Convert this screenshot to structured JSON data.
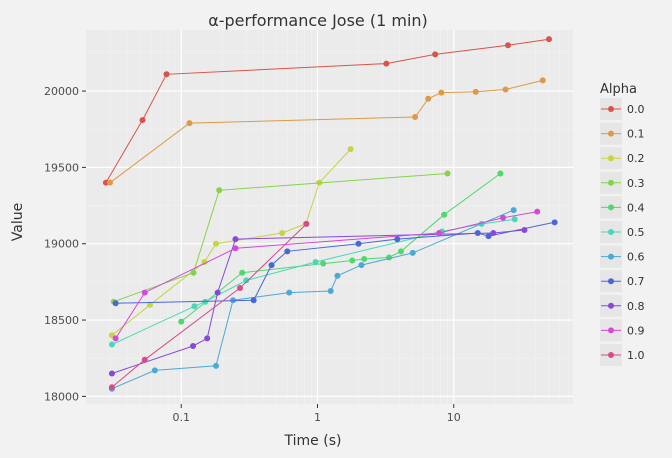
{
  "chart_data": {
    "type": "line",
    "title": "α-performance Jose (1 min)",
    "xlabel": "Time (s)",
    "ylabel": "Value",
    "x_scale": "log",
    "xlim": [
      0.02,
      75
    ],
    "ylim": [
      17950,
      20400
    ],
    "x_ticks": [
      0.1,
      1,
      10
    ],
    "x_tick_labels": [
      "0.1",
      "1",
      "10"
    ],
    "y_ticks": [
      18000,
      18500,
      19000,
      19500,
      20000
    ],
    "y_tick_labels": [
      "18000",
      "18500",
      "19000",
      "19500",
      "20000"
    ],
    "grid": true,
    "legend": {
      "title": "Alpha",
      "position": "right"
    },
    "series": [
      {
        "name": "0.0",
        "color": "#d9534a",
        "x": [
          0.028,
          0.052,
          0.078,
          3.2,
          7.3,
          25,
          50
        ],
        "y": [
          19400,
          19810,
          20110,
          20180,
          20240,
          20300,
          20340
        ]
      },
      {
        "name": "0.1",
        "color": "#dd9945",
        "x": [
          0.03,
          0.115,
          5.2,
          6.5,
          8.1,
          14.5,
          24,
          45
        ],
        "y": [
          19400,
          19790,
          19830,
          19950,
          19990,
          19995,
          20010,
          20070
        ]
      },
      {
        "name": "0.2",
        "color": "#c7d33f",
        "x": [
          0.031,
          0.059,
          0.148,
          0.18,
          0.55,
          0.82,
          1.03,
          1.75
        ],
        "y": [
          18400,
          18600,
          18880,
          19000,
          19070,
          19130,
          19400,
          19620
        ]
      },
      {
        "name": "0.3",
        "color": "#86d34a",
        "x": [
          0.032,
          0.123,
          0.19,
          9
        ],
        "y": [
          18620,
          18810,
          19350,
          19460
        ]
      },
      {
        "name": "0.4",
        "color": "#4fd86c",
        "x": [
          0.1,
          0.28,
          1.1,
          1.8,
          2.2,
          3.35,
          4.1,
          8.5,
          22
        ],
        "y": [
          18490,
          18810,
          18870,
          18890,
          18900,
          18910,
          18950,
          19190,
          19460
        ]
      },
      {
        "name": "0.5",
        "color": "#4ad6b8",
        "x": [
          0.031,
          0.125,
          0.15,
          0.3,
          0.97,
          8.2,
          16,
          28
        ],
        "y": [
          18340,
          18590,
          18620,
          18760,
          18880,
          19080,
          19130,
          19160
        ]
      },
      {
        "name": "0.6",
        "color": "#4aa9d6",
        "x": [
          0.031,
          0.064,
          0.18,
          0.24,
          0.62,
          1.25,
          1.4,
          2.1,
          5,
          27.5
        ],
        "y": [
          18050,
          18170,
          18200,
          18630,
          18680,
          18690,
          18790,
          18860,
          18940,
          19220
        ]
      },
      {
        "name": "0.7",
        "color": "#4a67d8",
        "x": [
          0.033,
          0.34,
          0.46,
          0.6,
          2,
          3.85,
          15,
          18,
          55
        ],
        "y": [
          18610,
          18630,
          18860,
          18950,
          19000,
          19030,
          19070,
          19050,
          19140
        ]
      },
      {
        "name": "0.8",
        "color": "#874ad8",
        "x": [
          0.031,
          0.122,
          0.155,
          0.185,
          0.25,
          19.5,
          33
        ],
        "y": [
          18150,
          18330,
          18380,
          18680,
          19030,
          19070,
          19090
        ]
      },
      {
        "name": "0.9",
        "color": "#d24ad6",
        "x": [
          0.033,
          0.054,
          0.25,
          7.8,
          23,
          41
        ],
        "y": [
          18380,
          18680,
          18970,
          19070,
          19170,
          19210
        ]
      },
      {
        "name": "1.0",
        "color": "#d94a88",
        "x": [
          0.031,
          0.054,
          0.27,
          0.83
        ],
        "y": [
          18060,
          18240,
          18710,
          19130
        ]
      }
    ]
  }
}
